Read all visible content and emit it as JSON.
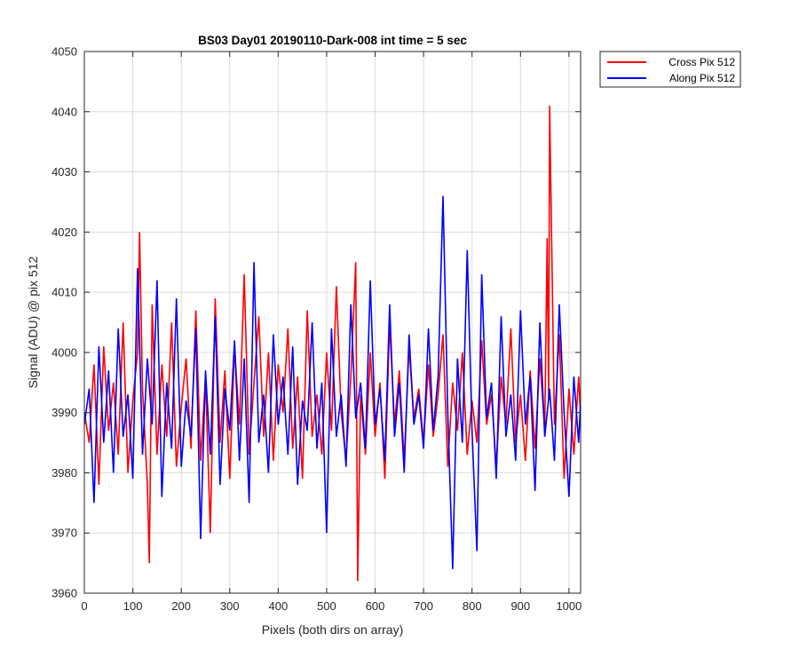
{
  "chart_data": {
    "type": "line",
    "title": "BS03 Day01 20190110-Dark-008 int time = 5 sec",
    "xlabel": "Pixels (both dirs on array)",
    "ylabel": "Signal (ADU) @ pix 512",
    "xlim": [
      0,
      1024
    ],
    "ylim": [
      3960,
      4050
    ],
    "xticks": [
      0,
      100,
      200,
      300,
      400,
      500,
      600,
      700,
      800,
      900,
      1000
    ],
    "yticks": [
      3960,
      3970,
      3980,
      3990,
      4000,
      4010,
      4020,
      4030,
      4040,
      4050
    ],
    "grid": true,
    "legend_position": "outside-top-right",
    "series": [
      {
        "name": "Cross Pix 512",
        "color": "#ff0000",
        "x": [
          0,
          10,
          20,
          30,
          40,
          50,
          60,
          70,
          80,
          90,
          100,
          110,
          114,
          120,
          130,
          134,
          140,
          150,
          160,
          170,
          180,
          190,
          200,
          210,
          220,
          230,
          240,
          250,
          260,
          270,
          280,
          290,
          300,
          310,
          320,
          330,
          340,
          350,
          360,
          370,
          380,
          390,
          400,
          410,
          420,
          430,
          440,
          450,
          460,
          470,
          480,
          490,
          500,
          510,
          520,
          530,
          540,
          550,
          560,
          564,
          570,
          580,
          590,
          600,
          610,
          620,
          630,
          640,
          650,
          660,
          670,
          680,
          690,
          700,
          710,
          720,
          730,
          740,
          750,
          760,
          770,
          780,
          790,
          800,
          810,
          820,
          830,
          840,
          850,
          860,
          870,
          880,
          890,
          900,
          910,
          920,
          930,
          940,
          950,
          955,
          958,
          960,
          970,
          980,
          990,
          1000,
          1010,
          1020,
          1024
        ],
        "y": [
          3990,
          3985,
          3998,
          3978,
          4001,
          3987,
          3995,
          3983,
          4005,
          3980,
          3992,
          4000,
          4020,
          3994,
          3978,
          3965,
          4008,
          3983,
          3998,
          3986,
          4005,
          3981,
          3991,
          3999,
          3984,
          4007,
          3982,
          3996,
          3970,
          4009,
          3985,
          3997,
          3979,
          4001,
          3988,
          4013,
          3983,
          3995,
          4006,
          3986,
          4000,
          3982,
          3998,
          3990,
          4004,
          3984,
          3996,
          3979,
          4007,
          3986,
          3993,
          3983,
          4000,
          3987,
          4011,
          3990,
          3982,
          3996,
          4015,
          3962,
          3993,
          3983,
          4000,
          3986,
          3995,
          3979,
          4005,
          3988,
          3997,
          3982,
          4001,
          3989,
          3994,
          3985,
          3998,
          3986,
          3993,
          4003,
          3981,
          3995,
          3987,
          4000,
          3983,
          3992,
          3985,
          4002,
          3988,
          3993,
          3981,
          3996,
          3988,
          4004,
          3985,
          3993,
          3982,
          3997,
          3984,
          3999,
          3987,
          4019,
          3992,
          4041,
          3988,
          4003,
          3979,
          3994,
          3983,
          3996,
          3989
        ]
      },
      {
        "name": "Along Pix 512",
        "color": "#0000ff",
        "x": [
          0,
          10,
          20,
          30,
          40,
          50,
          60,
          70,
          80,
          90,
          100,
          110,
          120,
          130,
          140,
          150,
          160,
          170,
          180,
          190,
          200,
          210,
          220,
          230,
          240,
          250,
          260,
          270,
          280,
          290,
          300,
          310,
          320,
          330,
          340,
          350,
          360,
          370,
          380,
          390,
          400,
          410,
          420,
          430,
          440,
          450,
          460,
          470,
          480,
          490,
          500,
          510,
          520,
          530,
          540,
          550,
          560,
          570,
          580,
          590,
          600,
          610,
          620,
          630,
          640,
          650,
          660,
          670,
          680,
          690,
          700,
          710,
          720,
          730,
          740,
          750,
          760,
          770,
          780,
          790,
          800,
          810,
          820,
          830,
          840,
          850,
          860,
          870,
          880,
          890,
          900,
          910,
          920,
          930,
          940,
          950,
          960,
          970,
          980,
          990,
          1000,
          1010,
          1020,
          1024
        ],
        "y": [
          3988,
          3994,
          3975,
          4001,
          3985,
          3997,
          3980,
          4004,
          3986,
          3993,
          3979,
          4014,
          3983,
          3999,
          3988,
          4012,
          3976,
          3995,
          3984,
          4009,
          3981,
          3992,
          3986,
          4004,
          3969,
          3997,
          3983,
          4006,
          3978,
          3994,
          3987,
          4002,
          3982,
          3999,
          3975,
          4015,
          3985,
          3993,
          3980,
          4003,
          3988,
          3996,
          3983,
          4001,
          3978,
          3992,
          3987,
          4005,
          3984,
          3995,
          3970,
          4004,
          3986,
          3993,
          3981,
          4008,
          3989,
          3995,
          3984,
          4012,
          3988,
          3994,
          3982,
          4008,
          3986,
          3995,
          3980,
          4003,
          3988,
          3993,
          3984,
          4004,
          3987,
          3996,
          4026,
          3990,
          3964,
          3999,
          3985,
          4017,
          3987,
          3967,
          4013,
          3989,
          3995,
          3979,
          4006,
          3986,
          3993,
          3982,
          4007,
          3988,
          3996,
          3977,
          4005,
          3986,
          3994,
          3982,
          4008,
          3990,
          3976,
          3996,
          3985,
          3992
        ]
      }
    ]
  }
}
